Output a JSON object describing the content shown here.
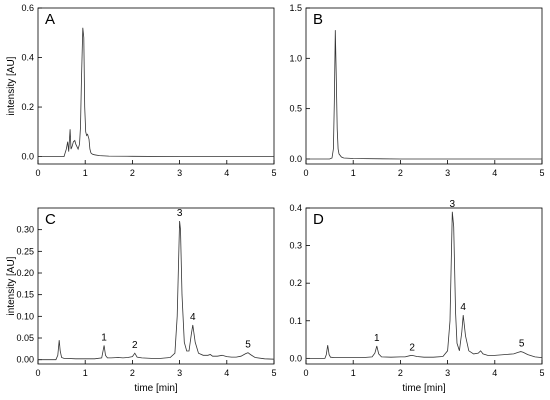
{
  "chart_data": [
    {
      "panel": "A",
      "type": "line",
      "xlim": [
        0,
        5
      ],
      "ylim": [
        -0.03,
        0.6
      ],
      "xticks": [
        0,
        1,
        2,
        3,
        4,
        5
      ],
      "yticks": [
        0.0,
        0.2,
        0.4,
        0.6
      ],
      "yticklabels": [
        "0.0",
        "0.2",
        "0.4",
        "0.6"
      ],
      "xlabel": "",
      "ylabel": "intensity [AU]",
      "grid": false,
      "series": [
        {
          "x": [
            0.0,
            0.55,
            0.6,
            0.63,
            0.65,
            0.68,
            0.7,
            0.72,
            0.75,
            0.78,
            0.8,
            0.85,
            0.88,
            0.9,
            0.92,
            0.95,
            0.97,
            0.99,
            1.01,
            1.03,
            1.05,
            1.08,
            1.1,
            1.12,
            1.15,
            1.2,
            1.3,
            1.5,
            2.0,
            3.0,
            4.0,
            5.0
          ],
          "y": [
            0.0,
            0.0,
            0.03,
            0.06,
            0.02,
            0.11,
            0.03,
            0.04,
            0.06,
            0.065,
            0.05,
            0.03,
            0.05,
            0.12,
            0.3,
            0.52,
            0.48,
            0.2,
            0.1,
            0.085,
            0.09,
            0.07,
            0.03,
            0.015,
            0.01,
            0.007,
            0.004,
            0.002,
            0.001,
            0.0,
            0.0,
            0.0
          ]
        }
      ],
      "peak_labels": []
    },
    {
      "panel": "B",
      "type": "line",
      "xlim": [
        0,
        5
      ],
      "ylim": [
        -0.05,
        1.5
      ],
      "xticks": [
        0,
        1,
        2,
        3,
        4,
        5
      ],
      "yticks": [
        0.0,
        0.5,
        1.0,
        1.5
      ],
      "yticklabels": [
        "0.0",
        "0.5",
        "1.0",
        "1.5"
      ],
      "xlabel": "",
      "ylabel": "",
      "grid": false,
      "series": [
        {
          "x": [
            0.0,
            0.5,
            0.55,
            0.58,
            0.6,
            0.62,
            0.64,
            0.66,
            0.68,
            0.7,
            0.75,
            0.8,
            1.0,
            2.0,
            3.0,
            4.0,
            5.0
          ],
          "y": [
            0.0,
            0.0,
            0.01,
            0.1,
            0.55,
            1.28,
            0.85,
            0.3,
            0.1,
            0.05,
            0.02,
            0.01,
            0.005,
            0.0,
            0.0,
            0.0,
            0.0
          ]
        }
      ],
      "peak_labels": []
    },
    {
      "panel": "C",
      "type": "line",
      "xlim": [
        0,
        5
      ],
      "ylim": [
        -0.01,
        0.35
      ],
      "xticks": [
        0,
        1,
        2,
        3,
        4,
        5
      ],
      "yticks": [
        0.0,
        0.05,
        0.1,
        0.15,
        0.2,
        0.25,
        0.3
      ],
      "yticklabels": [
        "0.00",
        "0.05",
        "0.10",
        "0.15",
        "0.20",
        "0.25",
        "0.30"
      ],
      "xlabel": "time [min]",
      "ylabel": "intensity [AU]",
      "grid": false,
      "series": [
        {
          "x": [
            0.0,
            0.38,
            0.42,
            0.45,
            0.47,
            0.5,
            0.55,
            0.6,
            0.8,
            1.0,
            1.2,
            1.35,
            1.4,
            1.43,
            1.47,
            1.55,
            1.7,
            1.8,
            1.9,
            2.0,
            2.05,
            2.1,
            2.2,
            2.4,
            2.6,
            2.8,
            2.9,
            2.95,
            3.0,
            3.02,
            3.05,
            3.1,
            3.15,
            3.2,
            3.25,
            3.28,
            3.33,
            3.4,
            3.5,
            3.6,
            3.65,
            3.7,
            3.8,
            3.9,
            4.0,
            4.1,
            4.2,
            4.3,
            4.4,
            4.45,
            4.5,
            4.6,
            4.8,
            5.0
          ],
          "y": [
            0.0,
            0.0,
            0.01,
            0.045,
            0.02,
            0.005,
            0.003,
            0.003,
            0.002,
            0.002,
            0.002,
            0.004,
            0.033,
            0.01,
            0.004,
            0.004,
            0.005,
            0.004,
            0.005,
            0.007,
            0.015,
            0.006,
            0.004,
            0.003,
            0.003,
            0.005,
            0.015,
            0.1,
            0.32,
            0.3,
            0.15,
            0.04,
            0.02,
            0.02,
            0.06,
            0.08,
            0.04,
            0.015,
            0.01,
            0.01,
            0.012,
            0.008,
            0.008,
            0.01,
            0.007,
            0.006,
            0.006,
            0.008,
            0.014,
            0.016,
            0.012,
            0.005,
            0.002,
            0.001
          ]
        }
      ],
      "peak_labels": [
        {
          "text": "1",
          "x": 1.4,
          "y": 0.033
        },
        {
          "text": "2",
          "x": 2.05,
          "y": 0.015
        },
        {
          "text": "3",
          "x": 3.0,
          "y": 0.32
        },
        {
          "text": "4",
          "x": 3.28,
          "y": 0.08
        },
        {
          "text": "5",
          "x": 4.45,
          "y": 0.016
        }
      ]
    },
    {
      "panel": "D",
      "type": "line",
      "xlim": [
        0,
        5
      ],
      "ylim": [
        -0.015,
        0.4
      ],
      "xticks": [
        0,
        1,
        2,
        3,
        4,
        5
      ],
      "yticks": [
        0.0,
        0.1,
        0.2,
        0.3,
        0.4
      ],
      "yticklabels": [
        "0.0",
        "0.1",
        "0.2",
        "0.3",
        "0.4"
      ],
      "xlabel": "time [min]",
      "ylabel": "",
      "grid": false,
      "series": [
        {
          "x": [
            0.0,
            0.4,
            0.43,
            0.46,
            0.49,
            0.52,
            0.6,
            0.8,
            1.0,
            1.2,
            1.4,
            1.46,
            1.5,
            1.54,
            1.6,
            1.8,
            2.0,
            2.1,
            2.2,
            2.25,
            2.35,
            2.5,
            2.7,
            2.9,
            3.0,
            3.05,
            3.1,
            3.13,
            3.17,
            3.2,
            3.25,
            3.3,
            3.33,
            3.38,
            3.45,
            3.55,
            3.65,
            3.7,
            3.75,
            3.85,
            4.0,
            4.2,
            4.4,
            4.5,
            4.55,
            4.6,
            4.7,
            4.85,
            5.0
          ],
          "y": [
            0.0,
            0.0,
            0.01,
            0.035,
            0.01,
            0.003,
            0.002,
            0.002,
            0.002,
            0.002,
            0.004,
            0.014,
            0.033,
            0.012,
            0.004,
            0.003,
            0.004,
            0.004,
            0.007,
            0.008,
            0.005,
            0.003,
            0.003,
            0.005,
            0.02,
            0.1,
            0.39,
            0.35,
            0.12,
            0.04,
            0.02,
            0.07,
            0.115,
            0.06,
            0.02,
            0.012,
            0.014,
            0.02,
            0.012,
            0.008,
            0.008,
            0.01,
            0.012,
            0.016,
            0.018,
            0.016,
            0.01,
            0.004,
            0.002
          ]
        }
      ],
      "peak_labels": [
        {
          "text": "1",
          "x": 1.5,
          "y": 0.033
        },
        {
          "text": "2",
          "x": 2.25,
          "y": 0.008
        },
        {
          "text": "3",
          "x": 3.1,
          "y": 0.39
        },
        {
          "text": "4",
          "x": 3.33,
          "y": 0.115
        },
        {
          "text": "5",
          "x": 4.57,
          "y": 0.018
        }
      ]
    }
  ]
}
